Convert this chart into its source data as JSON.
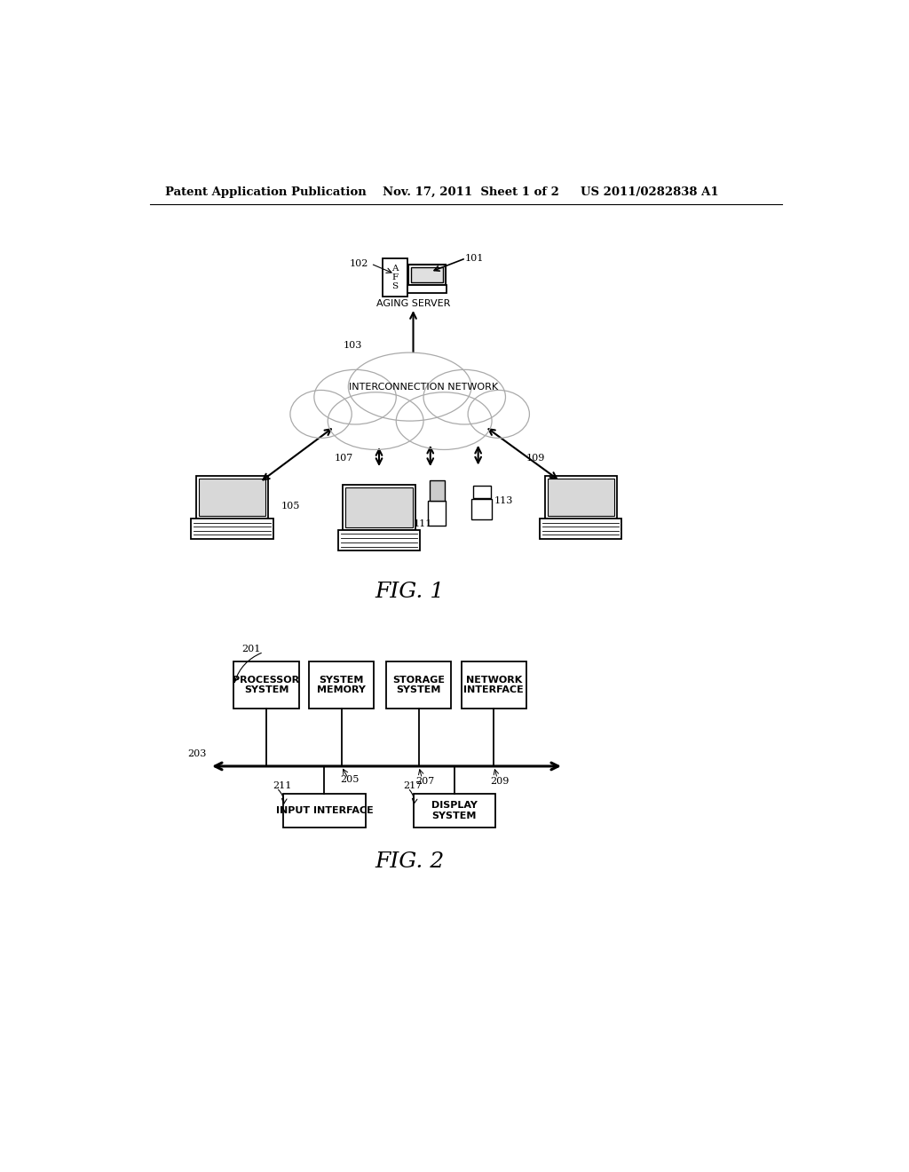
{
  "bg_color": "#ffffff",
  "header_left": "Patent Application Publication",
  "header_mid": "Nov. 17, 2011  Sheet 1 of 2",
  "header_right": "US 2011/0282838 A1",
  "fig1_label": "FIG. 1",
  "fig2_label": "FIG. 2",
  "aging_server_label": "AGING SERVER",
  "network_label": "INTERCONNECTION NETWORK",
  "ref_101": "101",
  "ref_102": "102",
  "ref_103": "103",
  "ref_105": "105",
  "ref_107": "107",
  "ref_109": "109",
  "ref_111": "111",
  "ref_113": "113",
  "ref_201": "201",
  "ref_203": "203",
  "ref_205": "205",
  "ref_207": "207",
  "ref_209": "209",
  "ref_211": "211",
  "ref_217": "217",
  "box_labels": [
    "PROCESSOR\nSYSTEM",
    "SYSTEM\nMEMORY",
    "STORAGE\nSYSTEM",
    "NETWORK\nINTERFACE"
  ],
  "box_labels_bottom": [
    "INPUT INTERFACE",
    "DISPLAY\nSYSTEM"
  ],
  "cloud_color": "#cccccc"
}
